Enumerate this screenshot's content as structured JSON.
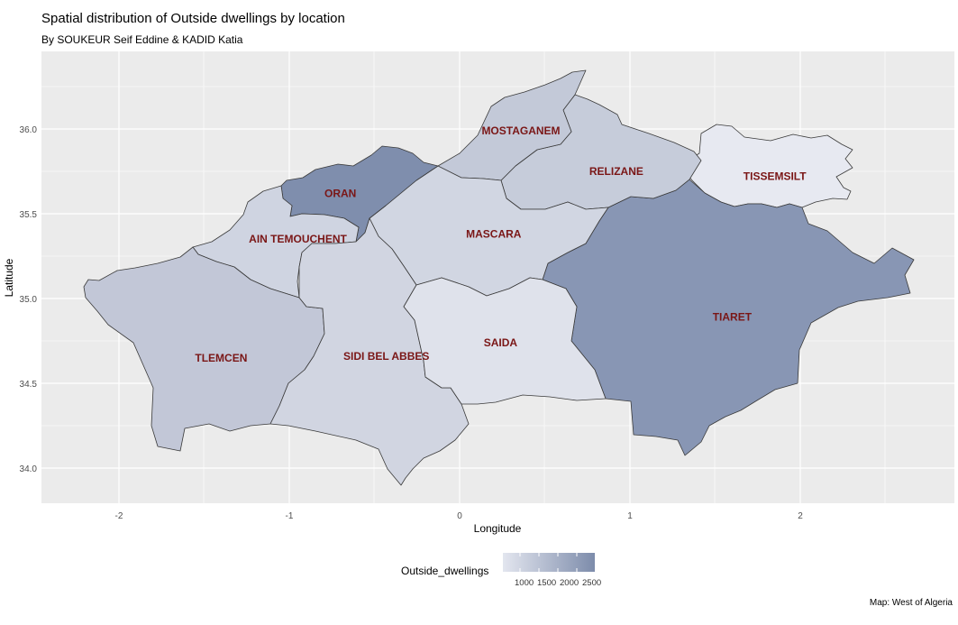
{
  "title": "Spatial distribution of Outside dwellings by location",
  "subtitle": "By SOUKEUR Seif Eddine & KADID Katia",
  "caption": "Map: West of Algeria",
  "x_axis": {
    "title": "Longitude",
    "ticks": [
      {
        "value": -2,
        "label": "-2"
      },
      {
        "value": -1,
        "label": "-1"
      },
      {
        "value": 0,
        "label": "0"
      },
      {
        "value": 1,
        "label": "1"
      },
      {
        "value": 2,
        "label": "2"
      }
    ]
  },
  "y_axis": {
    "title": "Latitude",
    "ticks": [
      {
        "value": 34.0,
        "label": "34.0"
      },
      {
        "value": 34.5,
        "label": "34.5"
      },
      {
        "value": 35.0,
        "label": "35.0"
      },
      {
        "value": 35.5,
        "label": "35.5"
      },
      {
        "value": 36.0,
        "label": "36.0"
      }
    ]
  },
  "legend": {
    "title": "Outside_dwellings",
    "labels": [
      "1000",
      "1500",
      "2000",
      "2500"
    ],
    "color_low": "#e3e6ef",
    "color_high": "#7d8cab"
  },
  "regions": [
    {
      "name": "ORAN",
      "fill": "#7f8ead",
      "label_lon": -0.7,
      "label_lat": 35.62
    },
    {
      "name": "AIN TEMOUCHENT",
      "fill": "#cfd4e1",
      "label_lon": -0.95,
      "label_lat": 35.35
    },
    {
      "name": "MOSTAGANEM",
      "fill": "#c3c9d8",
      "label_lon": 0.36,
      "label_lat": 35.99
    },
    {
      "name": "RELIZANE",
      "fill": "#c6ccda",
      "label_lon": 0.92,
      "label_lat": 35.75
    },
    {
      "name": "TISSEMSILT",
      "fill": "#e7e9f1",
      "label_lon": 1.85,
      "label_lat": 35.72
    },
    {
      "name": "MASCARA",
      "fill": "#d1d6e2",
      "label_lon": 0.2,
      "label_lat": 35.38
    },
    {
      "name": "TIARET",
      "fill": "#8896b4",
      "label_lon": 1.6,
      "label_lat": 34.89
    },
    {
      "name": "TLEMCEN",
      "fill": "#c2c7d7",
      "label_lon": -1.4,
      "label_lat": 34.65
    },
    {
      "name": "SIDI BEL ABBES",
      "fill": "#d1d5e1",
      "label_lon": -0.43,
      "label_lat": 34.66
    },
    {
      "name": "SAIDA",
      "fill": "#dfe2eb",
      "label_lon": 0.24,
      "label_lat": 34.74
    }
  ]
}
